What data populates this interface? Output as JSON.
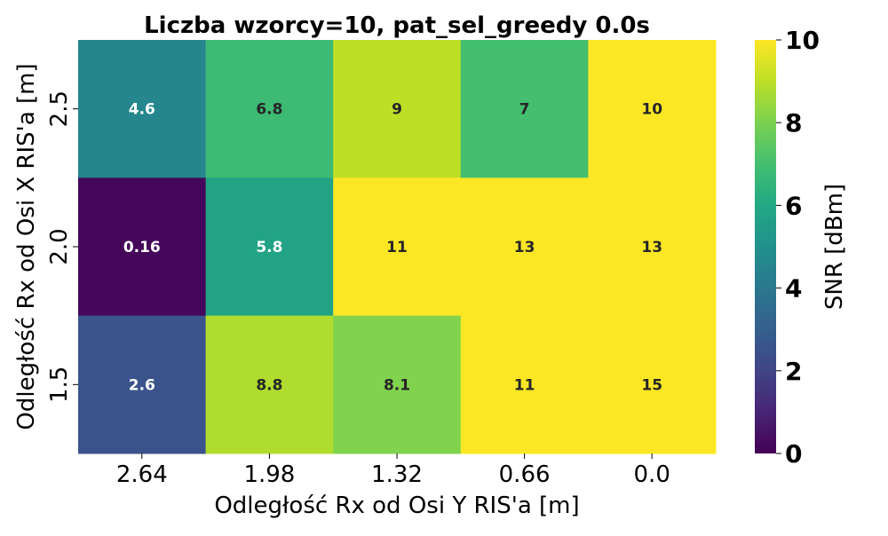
{
  "chart_data": {
    "type": "heatmap",
    "title": "Liczba wzorcy=10, pat_sel_greedy 0.0s",
    "xlabel": "Odległość Rx od Osi Y RIS'a [m]",
    "ylabel": "Odległość Rx od Osi X RIS'a [m]",
    "x_categories": [
      "2.64",
      "1.98",
      "1.32",
      "0.66",
      "0.0"
    ],
    "y_categories": [
      "2.5",
      "2.0",
      "1.5"
    ],
    "values": [
      [
        4.6,
        6.8,
        9,
        7,
        10
      ],
      [
        0.16,
        5.8,
        11,
        13,
        13
      ],
      [
        2.6,
        8.8,
        8.1,
        11,
        15
      ]
    ],
    "value_labels": [
      [
        "4.6",
        "6.8",
        "9",
        "7",
        "10"
      ],
      [
        "0.16",
        "5.8",
        "11",
        "13",
        "13"
      ],
      [
        "2.6",
        "8.8",
        "8.1",
        "11",
        "15"
      ]
    ],
    "colorbar": {
      "label": "SNR [dBm]",
      "min": 0,
      "max": 10,
      "ticks": [
        "0",
        "2",
        "4",
        "6",
        "8",
        "10"
      ],
      "colormap": "viridis"
    }
  }
}
